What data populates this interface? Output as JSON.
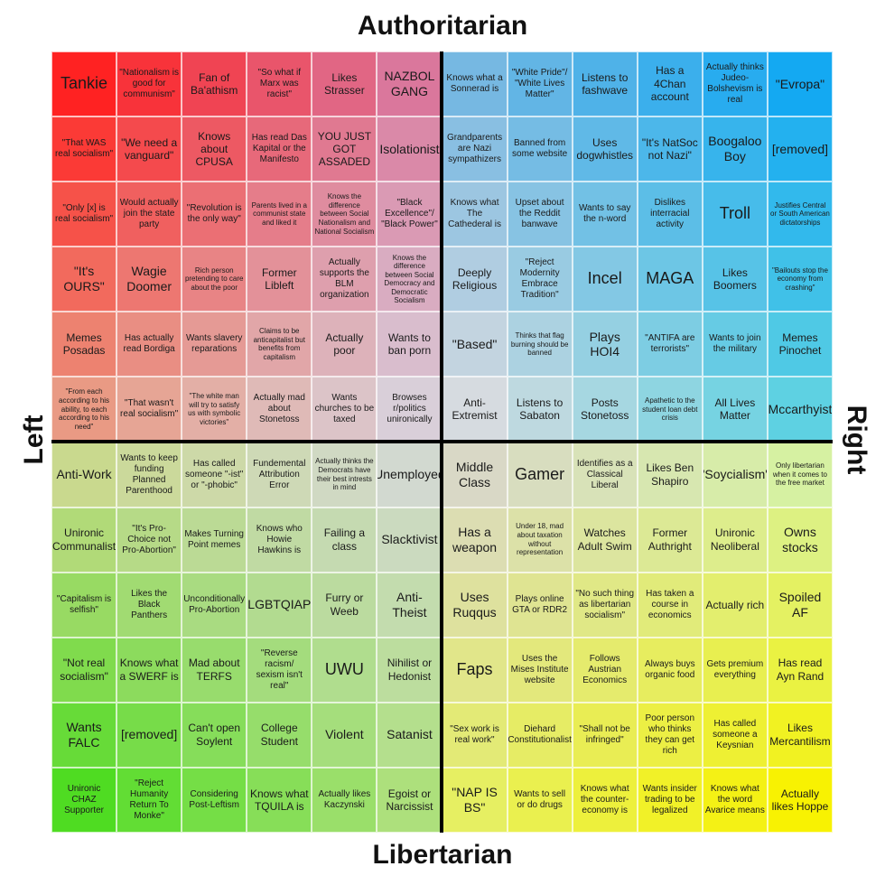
{
  "axis_labels": {
    "top": "Authoritarian",
    "bottom": "Libertarian",
    "left": "Left",
    "right": "Right"
  },
  "rows": [
    [
      "Tankie",
      "\"Nationalism is good for communism\"",
      "Fan of Ba'athism",
      "\"So what if Marx was racist\"",
      "Likes Strasser",
      "NAZBOL GANG",
      "Knows what a Sonnerad is",
      "\"White Pride\"/ \"White Lives Matter\"",
      "Listens to fashwave",
      "Has a 4Chan account",
      "Actually thinks Judeo-Bolshevism is real",
      "\"Evropa\""
    ],
    [
      "\"That WAS real socialism\"",
      "\"We need a vanguard\"",
      "Knows about CPUSA",
      "Has read Das Kapital or the Manifesto",
      "YOU JUST GOT ASSADED",
      "Isolationist",
      "Grandparents are Nazi sympathizers",
      "Banned from some website",
      "Uses dogwhistles",
      "\"It's NatSoc not Nazi\"",
      "Boogaloo Boy",
      "[removed]"
    ],
    [
      "\"Only [x] is real socialism\"",
      "Would actually join the state party",
      "\"Revolution is the only way\"",
      "Parents lived in a communist state and liked it",
      "Knows the difference between Social Nationalism and National Socialism",
      "\"Black Excellence\"/ \"Black Power\"",
      "Knows what The Cathederal is",
      "Upset about the Reddit banwave",
      "Wants to say the n-word",
      "Dislikes interracial activity",
      "Troll",
      "Justifies Central or South American dictatorships"
    ],
    [
      "\"It's OURS\"",
      "Wagie Doomer",
      "Rich person pretending to care about the poor",
      "Former Libleft",
      "Actually supports the BLM organization",
      "Knows the difference between Social Democracy and Democratic Socialism",
      "Deeply Religious",
      "\"Reject Modernity Embrace Tradition\"",
      "Incel",
      "MAGA",
      "Likes Boomers",
      "\"Bailouts stop the economy from crashing\""
    ],
    [
      "Memes Posadas",
      "Has actually read Bordiga",
      "Wants slavery reparations",
      "Claims to be anticapitalist but benefits from capitalism",
      "Actually poor",
      "Wants to ban porn",
      "\"Based\"",
      "Thinks that flag burning should be banned",
      "Plays HOI4",
      "\"ANTIFA are terrorists\"",
      "Wants to join the military",
      "Memes Pinochet"
    ],
    [
      "\"From each according to his ability, to each according to his need\"",
      "\"That wasn't real socialism\"",
      "\"The white man will try to satisfy us with symbolic victories\"",
      "Actually mad about Stonetoss",
      "Wants churches to be taxed",
      "Browses r/politics unironically",
      "Anti-Extremist",
      "Listens to Sabaton",
      "Posts Stonetoss",
      "Apathetic to the student loan debt crisis",
      "All Lives Matter",
      "Mccarthyist"
    ],
    [
      "Anti-Work",
      "Wants to keep funding Planned Parenthood",
      "Has called someone \"-ist\" or \"-phobic\"",
      "Fundemental Attribution Error",
      "Actually thinks the Democrats have their best intrests in mind",
      "Unemployed",
      "Middle Class",
      "Gamer",
      "Identifies as a Classical Liberal",
      "Likes Ben Shapiro",
      "\"Soycialism\"",
      "Only libertarian when it comes to the free market"
    ],
    [
      "Unironic Communalist",
      "\"It's Pro-Choice not Pro-Abortion\"",
      "Makes Turning Point memes",
      "Knows who Howie Hawkins is",
      "Failing a class",
      "Slacktivist",
      "Has a weapon",
      "Under 18, mad about taxation without representation",
      "Watches Adult Swim",
      "Former Authright",
      "Unironic Neoliberal",
      "Owns stocks"
    ],
    [
      "\"Capitalism is selfish\"",
      "Likes the Black Panthers",
      "Unconditionally Pro-Abortion",
      "LGBTQIAP",
      "Furry or Weeb",
      "Anti-Theist",
      "Uses Ruqqus",
      "Plays online GTA or RDR2",
      "\"No such thing as libertarian socialism\"",
      "Has taken a course in economics",
      "Actually rich",
      "Spoiled AF"
    ],
    [
      "\"Not real socialism\"",
      "Knows what a SWERF is",
      "Mad about TERFS",
      "\"Reverse racism/ sexism isn't real\"",
      "UWU",
      "Nihilist or Hedonist",
      "Faps",
      "Uses the Mises Institute website",
      "Follows Austrian Economics",
      "Always buys organic food",
      "Gets premium everything",
      "Has read Ayn Rand"
    ],
    [
      "Wants FALC",
      "[removed]",
      "Can't open Soylent",
      "College Student",
      "Violent",
      "Satanist",
      "\"Sex work is real work\"",
      "Diehard Constitutionalist",
      "\"Shall not be infringed\"",
      "Poor person who thinks they can get rich",
      "Has called someone a Keysnian",
      "Likes Mercantilism"
    ],
    [
      "Unironic CHAZ Supporter",
      "\"Reject Humanity Return To Monke\"",
      "Considering Post-Leftism",
      "Knows what TQUILA is",
      "Actually likes Kaczynski",
      "Egoist or Narcissist",
      "\"NAP IS BS\"",
      "Wants to sell or do drugs",
      "Knows what the counter-economy is",
      "Wants insider trading to be legalized",
      "Knows what the word Avarice means",
      "Actually likes Hoppe"
    ]
  ]
}
